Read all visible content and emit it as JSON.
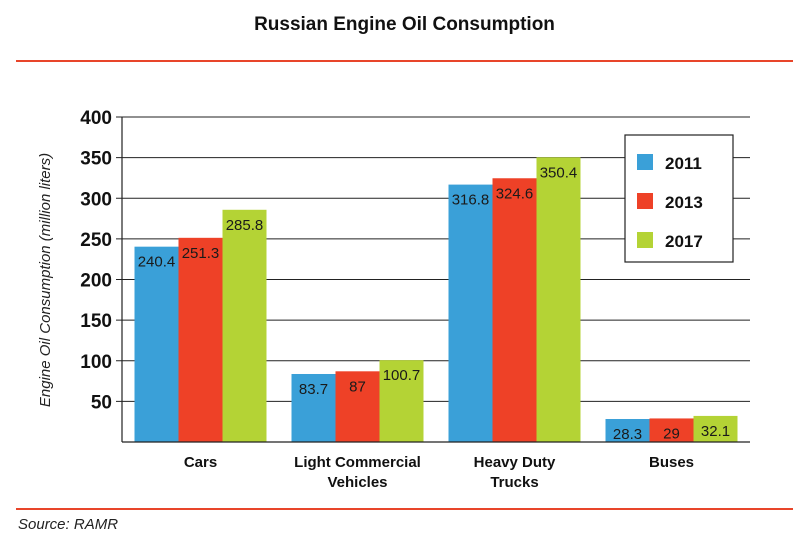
{
  "title": "Russian Engine Oil Consumption",
  "source": "Source: RAMR",
  "chart_data": {
    "type": "bar",
    "title": "Russian Engine Oil Consumption",
    "xlabel": "",
    "ylabel": "Engine Oil Consumption (million liters)",
    "ylim": [
      0,
      400
    ],
    "yticks": [
      50,
      100,
      150,
      200,
      250,
      300,
      350,
      400
    ],
    "grid": true,
    "legend_position": "top-right",
    "categories": [
      [
        "Cars"
      ],
      [
        "Light Commercial",
        "Vehicles"
      ],
      [
        "Heavy Duty",
        "Trucks"
      ],
      [
        "Buses"
      ]
    ],
    "series": [
      {
        "name": "2011",
        "color": "#3aa0d8",
        "values": [
          240.4,
          83.7,
          316.8,
          28.3
        ],
        "labels": [
          "240.4",
          "83.7",
          "316.8",
          "28.3"
        ]
      },
      {
        "name": "2013",
        "color": "#ee4127",
        "values": [
          251.3,
          87,
          324.6,
          29
        ],
        "labels": [
          "251.3",
          "87",
          "324.6",
          "29"
        ]
      },
      {
        "name": "2017",
        "color": "#b4d335",
        "values": [
          285.8,
          100.7,
          350.4,
          32.1
        ],
        "labels": [
          "285.8",
          "100.7",
          "350.4",
          "32.1"
        ]
      }
    ]
  }
}
